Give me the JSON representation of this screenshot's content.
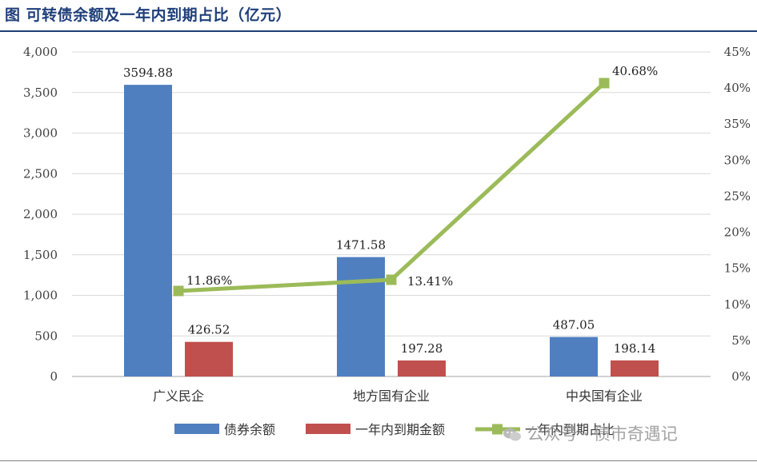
{
  "title": "图 可转债余额及一年内到期占比（亿元）",
  "watermark": "公众号 · 债市奇遇记",
  "chart_data": {
    "type": "bar",
    "categories": [
      "广义民企",
      "地方国有企业",
      "中央国有企业"
    ],
    "series": [
      {
        "name": "债券余额",
        "type": "bar",
        "axis": "left",
        "color": "#4f7fbf",
        "values": [
          3594.88,
          1471.58,
          487.05
        ],
        "labels": [
          "3594.88",
          "1471.58",
          "487.05"
        ]
      },
      {
        "name": "一年内到期金额",
        "type": "bar",
        "axis": "left",
        "color": "#c0504d",
        "values": [
          426.52,
          197.28,
          198.14
        ],
        "labels": [
          "426.52",
          "197.28",
          "198.14"
        ]
      },
      {
        "name": "一年内到期占比",
        "type": "line",
        "axis": "right",
        "color": "#9bbb59",
        "values": [
          11.86,
          13.41,
          40.68
        ],
        "labels": [
          "11.86%",
          "13.41%",
          "40.68%"
        ]
      }
    ],
    "y_left": {
      "min": 0,
      "max": 4000,
      "ticks": [
        "0",
        "500",
        "1,000",
        "1,500",
        "2,000",
        "2,500",
        "3,000",
        "3,500",
        "4,000"
      ]
    },
    "y_right": {
      "min": 0,
      "max": 45,
      "ticks": [
        "0%",
        "5%",
        "10%",
        "15%",
        "20%",
        "25%",
        "30%",
        "35%",
        "40%",
        "45%"
      ]
    },
    "legend_position": "bottom",
    "grid": true
  }
}
